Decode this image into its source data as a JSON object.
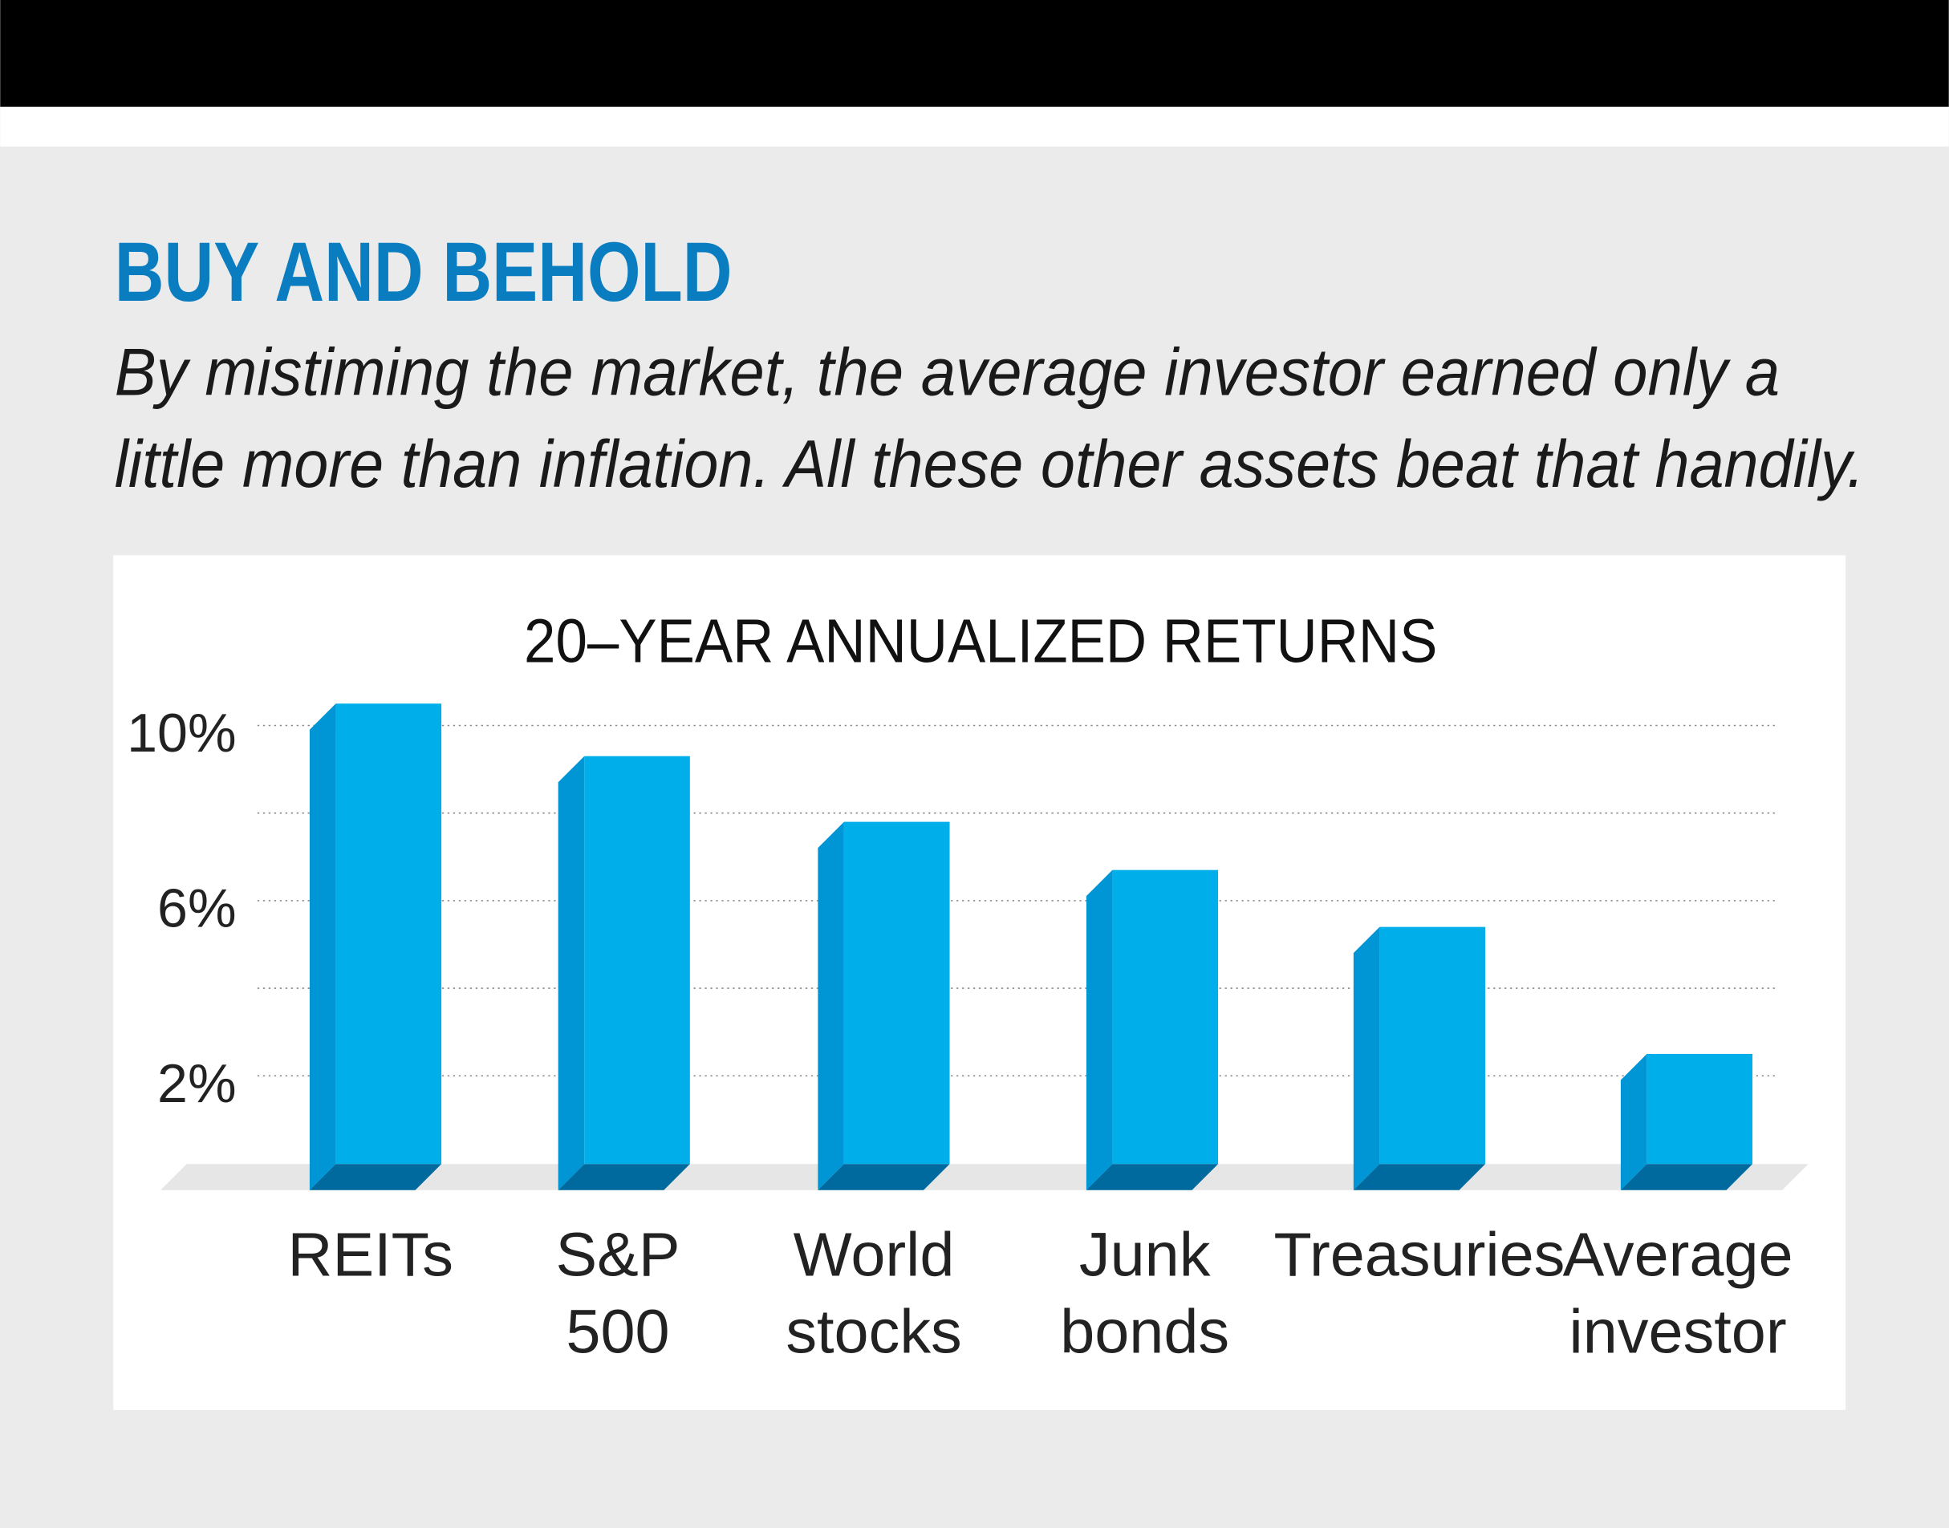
{
  "header": {
    "title": "BUY AND BEHOLD",
    "subtitle_line1": "By mistiming the market, the average investor earned only a",
    "subtitle_line2": "little more than inflation. All these other assets beat that handily."
  },
  "colors": {
    "title": "#0a7dc0",
    "bar_front": "#00aeea",
    "bar_side": "#0096d6",
    "bar_bottom": "#006a9e",
    "floor": "#e6e6e6",
    "background": "#ebebeb"
  },
  "chart_data": {
    "type": "bar",
    "title": "20–YEAR ANNUALIZED RETURNS",
    "categories": [
      [
        "REITs"
      ],
      [
        "S&P",
        "500"
      ],
      [
        "World",
        "stocks"
      ],
      [
        "Junk",
        "bonds"
      ],
      [
        "Treasuries"
      ],
      [
        "Average",
        "investor"
      ]
    ],
    "values": [
      10.5,
      9.3,
      7.8,
      6.7,
      5.4,
      2.5
    ],
    "unit": "%",
    "xlabel": "",
    "ylabel": "",
    "ylim": [
      0,
      10.5
    ],
    "yticks": [
      2,
      4,
      6,
      8,
      10
    ],
    "ytick_labels": [
      "2%",
      "",
      "6%",
      "",
      "10%"
    ],
    "grid": true,
    "legend": "none"
  }
}
